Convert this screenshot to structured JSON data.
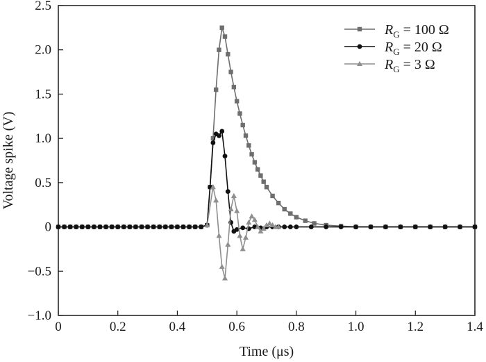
{
  "chart_data": {
    "type": "line",
    "title": "",
    "xlabel": "Time (μs)",
    "ylabel": "Voltage spike (V)",
    "xlim": [
      0,
      1.4
    ],
    "ylim": [
      -1.0,
      2.5
    ],
    "x_ticks": [
      "0",
      "0.2",
      "0.4",
      "0.6",
      "0.8",
      "1.0",
      "1.2",
      "1.4"
    ],
    "y_ticks": [
      "−1.0",
      "−0.5",
      "0",
      "0.5",
      "1.0",
      "1.5",
      "2.0",
      "2.5"
    ],
    "x_tick_values": [
      0,
      0.2,
      0.4,
      0.6,
      0.8,
      1.0,
      1.2,
      1.4
    ],
    "y_tick_values": [
      -1.0,
      -0.5,
      0,
      0.5,
      1.0,
      1.5,
      2.0,
      2.5
    ],
    "grid": false,
    "legend_position": "top-right",
    "series": [
      {
        "name": "R_G = 100 Ω",
        "legend_italic": "R",
        "legend_sub": "G",
        "legend_rest": " = 100 Ω",
        "marker": "square",
        "color": "#6e6e6e",
        "x": [
          0,
          0.02,
          0.04,
          0.06,
          0.08,
          0.1,
          0.12,
          0.14,
          0.16,
          0.18,
          0.2,
          0.22,
          0.24,
          0.26,
          0.28,
          0.3,
          0.32,
          0.34,
          0.36,
          0.38,
          0.4,
          0.42,
          0.44,
          0.46,
          0.48,
          0.5,
          0.51,
          0.52,
          0.53,
          0.54,
          0.55,
          0.56,
          0.57,
          0.58,
          0.59,
          0.6,
          0.61,
          0.62,
          0.63,
          0.64,
          0.65,
          0.66,
          0.67,
          0.68,
          0.69,
          0.7,
          0.72,
          0.74,
          0.76,
          0.78,
          0.8,
          0.83,
          0.86,
          0.9,
          0.95,
          1.0,
          1.05,
          1.1,
          1.15,
          1.2,
          1.25,
          1.3,
          1.35,
          1.4
        ],
        "y": [
          0,
          0,
          0,
          0,
          0,
          0,
          0,
          0,
          0,
          0,
          0,
          0,
          0,
          0,
          0,
          0,
          0,
          0,
          0,
          0,
          0,
          0,
          0,
          0,
          0,
          0.02,
          0.45,
          1.0,
          1.55,
          2.0,
          2.25,
          2.15,
          1.95,
          1.75,
          1.58,
          1.42,
          1.28,
          1.15,
          1.03,
          0.92,
          0.82,
          0.73,
          0.65,
          0.58,
          0.51,
          0.45,
          0.35,
          0.27,
          0.2,
          0.15,
          0.11,
          0.07,
          0.04,
          0.02,
          0.01,
          0,
          0,
          0,
          0,
          0,
          0,
          0,
          0,
          0
        ]
      },
      {
        "name": "R_G = 20 Ω",
        "legend_italic": "R",
        "legend_sub": "G",
        "legend_rest": " = 20 Ω",
        "marker": "circle",
        "color": "#111111",
        "x": [
          0,
          0.02,
          0.04,
          0.06,
          0.08,
          0.1,
          0.12,
          0.14,
          0.16,
          0.18,
          0.2,
          0.22,
          0.24,
          0.26,
          0.28,
          0.3,
          0.32,
          0.34,
          0.36,
          0.38,
          0.4,
          0.42,
          0.44,
          0.46,
          0.48,
          0.5,
          0.51,
          0.52,
          0.53,
          0.54,
          0.55,
          0.56,
          0.57,
          0.58,
          0.59,
          0.6,
          0.62,
          0.64,
          0.66,
          0.68,
          0.7,
          0.72,
          0.74,
          0.76,
          0.78,
          0.8,
          0.85,
          0.9,
          0.95,
          1.0,
          1.05,
          1.1,
          1.15,
          1.2,
          1.25,
          1.3,
          1.35,
          1.4
        ],
        "y": [
          0,
          0,
          0,
          0,
          0,
          0,
          0,
          0,
          0,
          0,
          0,
          0,
          0,
          0,
          0,
          0,
          0,
          0,
          0,
          0,
          0,
          0,
          0,
          0,
          0,
          0.02,
          0.45,
          0.95,
          1.05,
          1.03,
          1.08,
          0.8,
          0.4,
          0.05,
          -0.05,
          -0.03,
          -0.01,
          -0.02,
          0,
          -0.01,
          0,
          0,
          0,
          0,
          0,
          0,
          0,
          0,
          0,
          0,
          0,
          0,
          0,
          0,
          0,
          0,
          0,
          0
        ]
      },
      {
        "name": "R_G = 3 Ω",
        "legend_italic": "R",
        "legend_sub": "G",
        "legend_rest": " = 3 Ω",
        "marker": "triangle",
        "color": "#8f8f8f",
        "x": [
          0.5,
          0.52,
          0.53,
          0.54,
          0.55,
          0.56,
          0.57,
          0.58,
          0.59,
          0.6,
          0.61,
          0.62,
          0.63,
          0.64,
          0.65,
          0.66,
          0.67,
          0.68,
          0.69,
          0.7,
          0.71,
          0.72,
          0.73,
          0.74
        ],
        "y": [
          0.02,
          0.45,
          0.3,
          -0.1,
          -0.45,
          -0.58,
          -0.2,
          0.2,
          0.35,
          0.18,
          -0.1,
          -0.25,
          -0.12,
          0.05,
          0.12,
          0.08,
          0,
          -0.05,
          -0.02,
          0.02,
          0.04,
          0.02,
          0,
          0
        ]
      }
    ]
  }
}
